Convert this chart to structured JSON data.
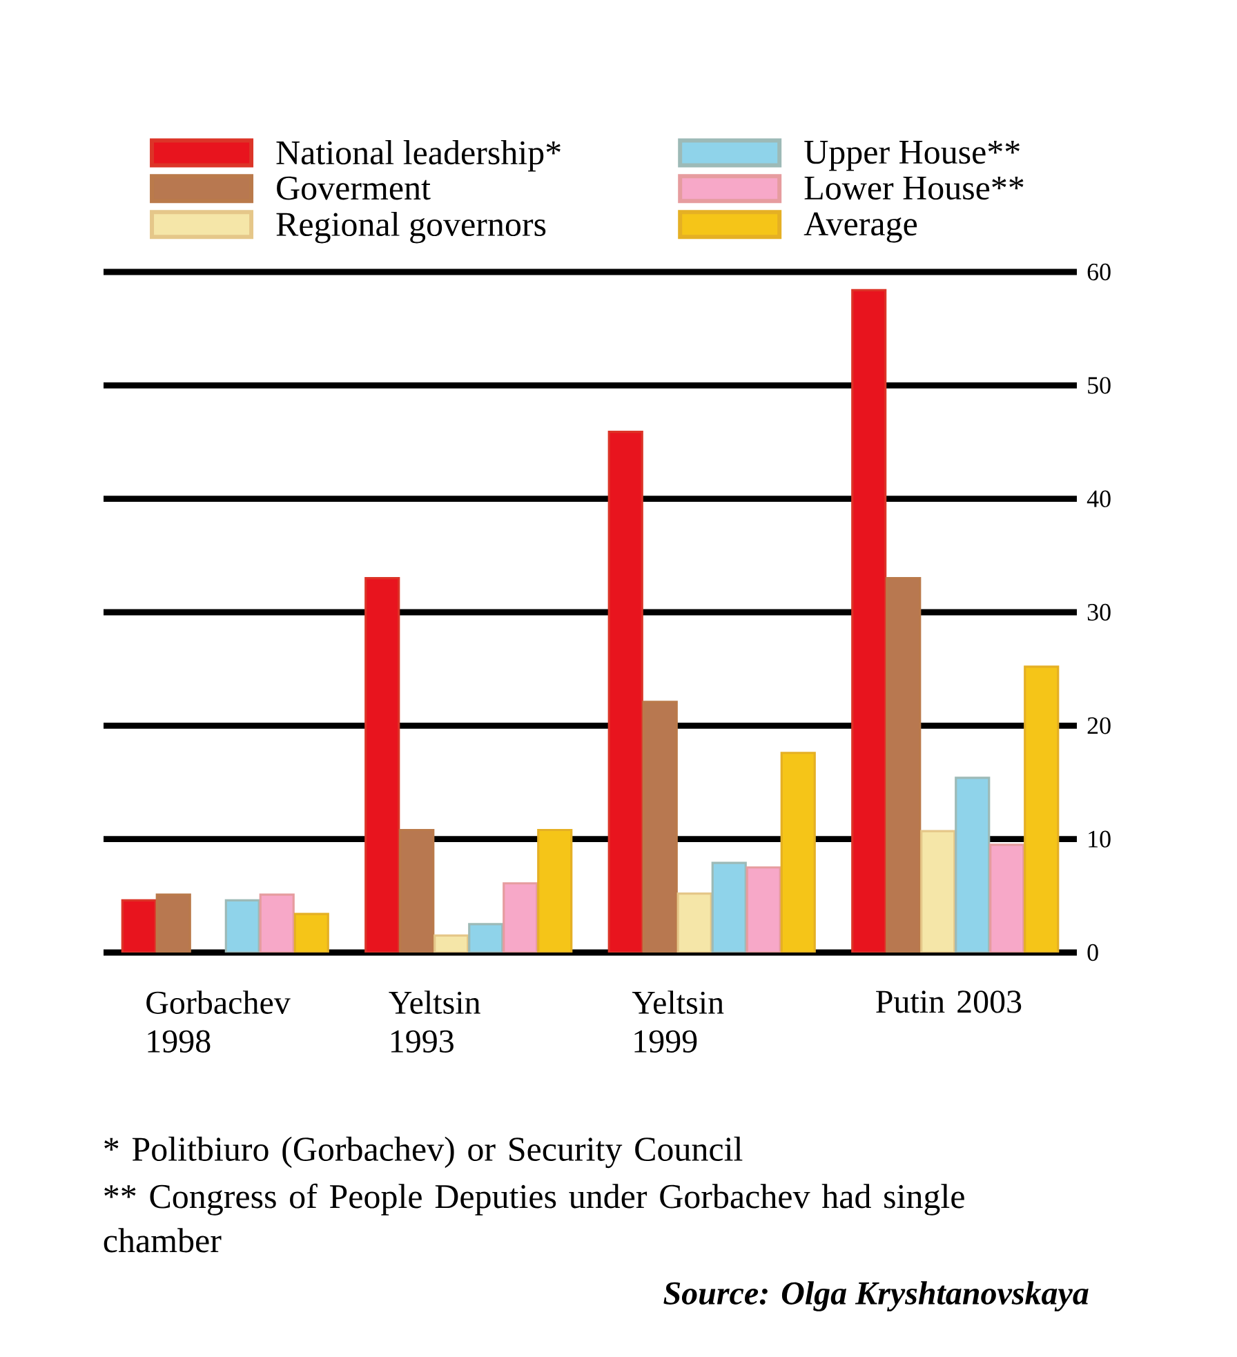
{
  "chart_data": {
    "type": "bar",
    "categories": [
      "Gorbachev 1998",
      "Yeltsin 1993",
      "Yeltsin 1999",
      "Putin 2003"
    ],
    "series": [
      {
        "name": "National leadership*",
        "color": "#e8141e",
        "values": [
          4.6,
          33,
          45.9,
          58.4
        ]
      },
      {
        "name": "Goverment",
        "color": "#b87850",
        "values": [
          5.1,
          10.8,
          22.1,
          33
        ]
      },
      {
        "name": "Regional governors",
        "color": "#f5e6a8",
        "values": [
          null,
          1.5,
          5.2,
          10.7
        ]
      },
      {
        "name": "Upper House**",
        "color": "#8fd3ea",
        "values": [
          4.6,
          2.5,
          7.9,
          15.4
        ]
      },
      {
        "name": "Lower House**",
        "color": "#f7a8c8",
        "values": [
          5.1,
          6.1,
          7.5,
          9.5
        ]
      },
      {
        "name": "Average",
        "color": "#f5c518",
        "values": [
          3.4,
          10.8,
          17.6,
          25.2
        ]
      }
    ],
    "ylim": [
      0,
      60
    ],
    "yticks": [
      0,
      10,
      20,
      30,
      40,
      50,
      60
    ],
    "grid": "y",
    "legend": "top",
    "annotations": [
      "* Politbiuro (Gorbachev) or Security Council",
      "** Congress of People Deputies under Gorbachev had single chamber",
      "Source: Olga Kryshtanovskaya"
    ]
  }
}
